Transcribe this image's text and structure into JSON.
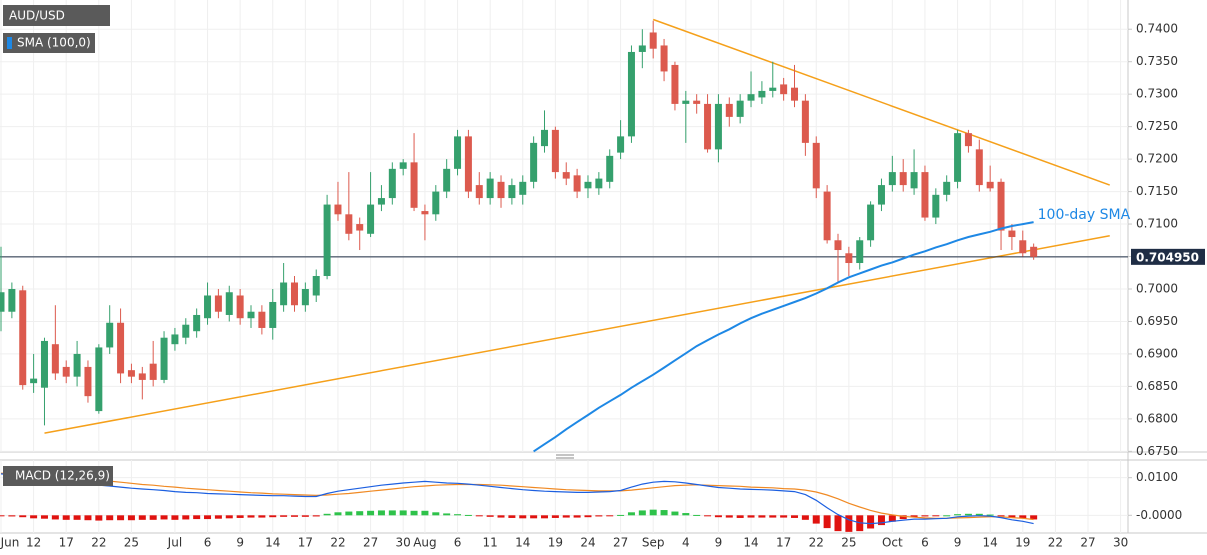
{
  "chart_data": [
    {
      "type": "candlestick",
      "title": "AUD/USD",
      "categories": [
        "Jun",
        null,
        null,
        "12",
        null,
        null,
        "17",
        null,
        null,
        "22",
        null,
        null,
        "25",
        null,
        null,
        null,
        "Jul",
        null,
        null,
        "6",
        null,
        null,
        "9",
        null,
        null,
        "14",
        null,
        null,
        "17",
        null,
        null,
        "22",
        null,
        null,
        "27",
        null,
        null,
        "30",
        null,
        "Aug",
        null,
        null,
        "6",
        null,
        null,
        "11",
        null,
        null,
        "14",
        null,
        null,
        "19",
        null,
        null,
        "24",
        null,
        null,
        "27",
        null,
        null,
        "Sep",
        null,
        null,
        "4",
        null,
        null,
        "9",
        null,
        null,
        "14",
        null,
        null,
        "17",
        null,
        null,
        "22",
        null,
        null,
        "25",
        null,
        null,
        null,
        "Oct",
        null,
        null,
        "6",
        null,
        null,
        "9",
        null,
        null,
        "14",
        null,
        null,
        "19",
        null,
        null,
        "22",
        null,
        null,
        "27",
        null,
        null,
        "30"
      ],
      "open": [
        0.6965,
        0.6965,
        0.6998,
        0.6855,
        0.6848,
        0.6915,
        0.688,
        0.6865,
        0.688,
        0.6812,
        0.691,
        0.6948,
        0.6875,
        0.687,
        0.6885,
        0.686,
        0.6915,
        0.6925,
        0.6935,
        0.6955,
        0.699,
        0.696,
        0.699,
        0.6955,
        0.6965,
        0.694,
        0.6975,
        0.701,
        0.6975,
        0.699,
        0.702,
        0.713,
        0.7115,
        0.71,
        0.7085,
        0.713,
        0.714,
        0.7185,
        0.7195,
        0.712,
        0.7115,
        0.715,
        0.7185,
        0.7235,
        0.716,
        0.714,
        0.7165,
        0.714,
        0.7145,
        0.7165,
        0.722,
        0.7245,
        0.718,
        0.7175,
        0.7155,
        0.7155,
        0.7165,
        0.721,
        0.7235,
        0.7365,
        0.7395,
        0.7375,
        0.7345,
        0.7285,
        0.729,
        0.7285,
        0.7215,
        0.7285,
        0.7265,
        0.729,
        0.7295,
        0.7305,
        0.7315,
        0.731,
        0.729,
        0.7225,
        0.715,
        0.7075,
        0.7055,
        0.704,
        0.7075,
        0.713,
        0.716,
        0.718,
        0.7155,
        0.718,
        0.711,
        0.7145,
        0.7165,
        0.724,
        0.7215,
        0.7165,
        0.7165,
        0.709,
        0.7075,
        0.7065,
        null,
        null,
        null,
        null,
        null,
        null,
        null,
        null
      ],
      "high": [
        0.7065,
        0.701,
        0.7005,
        0.69,
        0.6925,
        0.6975,
        0.689,
        0.692,
        0.689,
        0.6915,
        0.6975,
        0.697,
        0.6885,
        0.688,
        0.692,
        0.6935,
        0.694,
        0.6955,
        0.697,
        0.701,
        0.7,
        0.7005,
        0.7,
        0.6975,
        0.6975,
        0.7,
        0.704,
        0.702,
        0.701,
        0.703,
        0.7145,
        0.7165,
        0.718,
        0.711,
        0.718,
        0.716,
        0.7195,
        0.72,
        0.724,
        0.713,
        0.716,
        0.72,
        0.7245,
        0.7245,
        0.718,
        0.718,
        0.7175,
        0.717,
        0.7175,
        0.7235,
        0.7275,
        0.725,
        0.7195,
        0.7185,
        0.7175,
        0.718,
        0.7215,
        0.726,
        0.7375,
        0.74,
        0.7413,
        0.7385,
        0.735,
        0.7305,
        0.73,
        0.73,
        0.73,
        0.7295,
        0.73,
        0.7335,
        0.732,
        0.735,
        0.7325,
        0.7345,
        0.73,
        0.7235,
        0.716,
        0.7085,
        0.7065,
        0.708,
        0.7135,
        0.717,
        0.7205,
        0.72,
        0.7215,
        0.719,
        0.7155,
        0.7175,
        0.7245,
        0.7245,
        0.723,
        0.719,
        0.717,
        0.71,
        0.709,
        0.707,
        null,
        null,
        null,
        null,
        null,
        null,
        null,
        null
      ],
      "low": [
        0.6935,
        0.6955,
        0.6845,
        0.684,
        0.679,
        0.686,
        0.6855,
        0.685,
        0.6825,
        0.6808,
        0.69,
        0.6855,
        0.6855,
        0.683,
        0.685,
        0.6855,
        0.6905,
        0.6915,
        0.6925,
        0.6945,
        0.6955,
        0.695,
        0.6945,
        0.694,
        0.693,
        0.6922,
        0.6965,
        0.6965,
        0.6965,
        0.698,
        0.7015,
        0.7105,
        0.7075,
        0.706,
        0.708,
        0.712,
        0.713,
        0.7175,
        0.712,
        0.7075,
        0.7105,
        0.714,
        0.7175,
        0.714,
        0.713,
        0.713,
        0.7125,
        0.713,
        0.713,
        0.7155,
        0.721,
        0.717,
        0.716,
        0.714,
        0.714,
        0.7145,
        0.7155,
        0.72,
        0.7225,
        0.734,
        0.7355,
        0.732,
        0.7275,
        0.7225,
        0.727,
        0.721,
        0.7195,
        0.725,
        0.7255,
        0.728,
        0.7285,
        0.7295,
        0.729,
        0.728,
        0.7205,
        0.714,
        0.707,
        0.701,
        0.702,
        0.703,
        0.7065,
        0.712,
        0.715,
        0.715,
        0.7145,
        0.7105,
        0.71,
        0.7135,
        0.7155,
        0.721,
        0.715,
        0.715,
        0.706,
        0.706,
        0.705,
        0.7045,
        null,
        null,
        null,
        null,
        null,
        null,
        null,
        null
      ],
      "close": [
        0.6995,
        0.7,
        0.6852,
        0.6862,
        0.692,
        0.687,
        0.6865,
        0.69,
        0.6835,
        0.691,
        0.6948,
        0.687,
        0.6865,
        0.686,
        0.686,
        0.6925,
        0.693,
        0.6945,
        0.696,
        0.699,
        0.6965,
        0.6995,
        0.6955,
        0.6965,
        0.694,
        0.698,
        0.701,
        0.6975,
        0.7,
        0.702,
        0.713,
        0.7115,
        0.7085,
        0.709,
        0.713,
        0.714,
        0.7185,
        0.7195,
        0.7125,
        0.7115,
        0.715,
        0.7185,
        0.7235,
        0.715,
        0.714,
        0.717,
        0.714,
        0.716,
        0.7165,
        0.7225,
        0.7245,
        0.718,
        0.717,
        0.715,
        0.7165,
        0.717,
        0.7205,
        0.7235,
        0.7365,
        0.7375,
        0.737,
        0.7335,
        0.7285,
        0.729,
        0.7285,
        0.7215,
        0.7285,
        0.7265,
        0.729,
        0.73,
        0.7305,
        0.731,
        0.73,
        0.729,
        0.7225,
        0.7155,
        0.7075,
        0.706,
        0.704,
        0.7075,
        0.713,
        0.716,
        0.718,
        0.716,
        0.718,
        0.711,
        0.7145,
        0.7165,
        0.724,
        0.722,
        0.716,
        0.7155,
        0.709,
        0.708,
        0.7055,
        0.70495,
        null,
        null,
        null,
        null,
        null,
        null,
        null,
        null
      ],
      "up_color": "#35a06d",
      "down_color": "#dc5a4e",
      "indicator": {
        "name": "SMA (100,0)",
        "label": "100-day SMA",
        "color": "#1e88e5",
        "values": [
          null,
          null,
          null,
          null,
          null,
          null,
          null,
          null,
          null,
          null,
          null,
          null,
          null,
          null,
          null,
          null,
          null,
          null,
          null,
          null,
          null,
          null,
          null,
          null,
          null,
          null,
          null,
          null,
          null,
          null,
          null,
          null,
          null,
          null,
          null,
          null,
          null,
          null,
          null,
          null,
          null,
          null,
          null,
          null,
          null,
          null,
          null,
          null,
          null,
          0.675,
          0.6761,
          0.6772,
          0.6784,
          0.6795,
          0.6806,
          0.6817,
          0.6827,
          0.6837,
          0.6848,
          0.6858,
          0.6868,
          0.6879,
          0.689,
          0.6901,
          0.6912,
          0.6921,
          0.693,
          0.6938,
          0.6947,
          0.6955,
          0.6962,
          0.6968,
          0.6974,
          0.698,
          0.6986,
          0.6993,
          0.7001,
          0.701,
          0.7018,
          0.7024,
          0.703,
          0.7036,
          0.7041,
          0.7047,
          0.7053,
          0.7058,
          0.7064,
          0.7069,
          0.7075,
          0.708,
          0.7084,
          0.7088,
          0.7093,
          0.7097,
          0.71,
          0.7103,
          null,
          null,
          null,
          null,
          null,
          null,
          null,
          null
        ]
      },
      "trendlines": [
        {
          "color": "#f5a01a",
          "x": [
            4,
            102
          ],
          "y": [
            0.6778,
            0.7082
          ]
        },
        {
          "color": "#f5a01a",
          "x": [
            60,
            102
          ],
          "y": [
            0.7415,
            0.716
          ]
        }
      ],
      "last_price": {
        "value": 0.70495,
        "label": "0.704950"
      },
      "ylim": [
        0.6749,
        0.7445
      ],
      "yticks": [
        {
          "value": 0.675,
          "label": "0.6750"
        },
        {
          "value": 0.68,
          "label": "0.6800"
        },
        {
          "value": 0.685,
          "label": "0.6850"
        },
        {
          "value": 0.69,
          "label": "0.6900"
        },
        {
          "value": 0.695,
          "label": "0.6950"
        },
        {
          "value": 0.7,
          "label": "0.7000"
        },
        {
          "value": 0.705,
          "label": "0.7050"
        },
        {
          "value": 0.71,
          "label": "0.7100"
        },
        {
          "value": 0.715,
          "label": "0.7150"
        },
        {
          "value": 0.72,
          "label": "0.7200"
        },
        {
          "value": 0.725,
          "label": "0.7250"
        },
        {
          "value": 0.73,
          "label": "0.7300"
        },
        {
          "value": 0.735,
          "label": "0.7350"
        },
        {
          "value": 0.74,
          "label": "0.7400"
        }
      ],
      "grid": true
    },
    {
      "type": "macd",
      "title": "MACD (12,26,9)",
      "ylim": [
        -0.0047,
        0.0147
      ],
      "yticks": [
        {
          "value": 0.01,
          "label": "0.0100"
        },
        {
          "value": 0,
          "label": "-0.0000"
        }
      ],
      "macd": {
        "color": "#1c5fe0",
        "values": [
          0.011,
          0.0108,
          0.0105,
          0.01,
          0.0097,
          0.0093,
          0.009,
          0.0087,
          0.0083,
          0.008,
          0.0078,
          0.0075,
          0.0072,
          0.007,
          0.0068,
          0.0066,
          0.0063,
          0.0061,
          0.006,
          0.0058,
          0.0057,
          0.0056,
          0.0055,
          0.0054,
          0.0053,
          0.0052,
          0.0052,
          0.0051,
          0.005,
          0.005,
          0.0058,
          0.0064,
          0.0068,
          0.0072,
          0.0076,
          0.008,
          0.0083,
          0.0086,
          0.0088,
          0.009,
          0.0088,
          0.0086,
          0.0085,
          0.0083,
          0.008,
          0.0077,
          0.0074,
          0.0071,
          0.0068,
          0.0066,
          0.0064,
          0.0063,
          0.0062,
          0.0061,
          0.0061,
          0.0062,
          0.0063,
          0.0066,
          0.0075,
          0.0083,
          0.0088,
          0.009,
          0.0089,
          0.0086,
          0.0082,
          0.0078,
          0.0074,
          0.0072,
          0.007,
          0.0069,
          0.0068,
          0.0067,
          0.0065,
          0.0063,
          0.0055,
          0.004,
          0.002,
          0.0002,
          -0.0012,
          -0.002,
          -0.0022,
          -0.002,
          -0.0016,
          -0.0013,
          -0.001,
          -0.001,
          -0.0009,
          -0.0008,
          -0.0004,
          -0.0002,
          -0.0001,
          -0.0002,
          -0.0006,
          -0.0012,
          -0.0016,
          -0.0022,
          null,
          null,
          null,
          null,
          null,
          null,
          null,
          null
        ]
      },
      "signal": {
        "color": "#f08a24",
        "values": [
          0.0112,
          0.0111,
          0.011,
          0.0108,
          0.0106,
          0.0104,
          0.0102,
          0.0099,
          0.0096,
          0.0094,
          0.0091,
          0.0088,
          0.0085,
          0.0082,
          0.008,
          0.0077,
          0.0075,
          0.0072,
          0.007,
          0.0068,
          0.0066,
          0.0064,
          0.0062,
          0.006,
          0.0059,
          0.0057,
          0.0056,
          0.0055,
          0.0054,
          0.0053,
          0.0054,
          0.0056,
          0.0058,
          0.0061,
          0.0064,
          0.0067,
          0.007,
          0.0073,
          0.0076,
          0.0078,
          0.008,
          0.0081,
          0.0082,
          0.0082,
          0.0082,
          0.0081,
          0.008,
          0.0078,
          0.0076,
          0.0074,
          0.0072,
          0.007,
          0.0068,
          0.0067,
          0.0066,
          0.0065,
          0.0065,
          0.0065,
          0.0067,
          0.007,
          0.0073,
          0.0076,
          0.0079,
          0.008,
          0.0081,
          0.008,
          0.0079,
          0.0078,
          0.0077,
          0.0075,
          0.0074,
          0.0073,
          0.0071,
          0.007,
          0.0067,
          0.0062,
          0.0054,
          0.0044,
          0.0032,
          0.0022,
          0.0013,
          0.0006,
          0.0001,
          -0.0003,
          -0.0005,
          -0.0007,
          -0.0008,
          -0.0008,
          -0.0007,
          -0.0006,
          -0.0005,
          -0.0004,
          -0.0004,
          -0.0006,
          -0.0008,
          -0.0011,
          null,
          null,
          null,
          null,
          null,
          null,
          null,
          null
        ]
      },
      "histogram": {
        "up_color": "#2ec24a",
        "down_color": "#e0120f",
        "values": [
          -0.0002,
          -0.0003,
          -0.0005,
          -0.0008,
          -0.0009,
          -0.0011,
          -0.0012,
          -0.0012,
          -0.0013,
          -0.0014,
          -0.0013,
          -0.0013,
          -0.0013,
          -0.0012,
          -0.0012,
          -0.0011,
          -0.0012,
          -0.0011,
          -0.001,
          -0.001,
          -0.0009,
          -0.0008,
          -0.0007,
          -0.0006,
          -0.0006,
          -0.0005,
          -0.0004,
          -0.0004,
          -0.0004,
          -0.0003,
          0.0004,
          0.0008,
          0.001,
          0.0011,
          0.0012,
          0.0013,
          0.0013,
          0.0013,
          0.0012,
          0.0012,
          0.0008,
          0.0005,
          0.0003,
          0.0001,
          -0.0002,
          -0.0004,
          -0.0006,
          -0.0007,
          -0.0008,
          -0.0008,
          -0.0008,
          -0.0007,
          -0.0006,
          -0.0006,
          -0.0005,
          -0.0003,
          -0.0002,
          0.0001,
          0.0008,
          0.0013,
          0.0015,
          0.0014,
          0.001,
          0.0006,
          0.0001,
          -0.0002,
          -0.0005,
          -0.0006,
          -0.0007,
          -0.0006,
          -0.0006,
          -0.0006,
          -0.0006,
          -0.0007,
          -0.0012,
          -0.0022,
          -0.0034,
          -0.0042,
          -0.0044,
          -0.0042,
          -0.0035,
          -0.0026,
          -0.0017,
          -0.001,
          -0.0005,
          -0.0003,
          -0.0001,
          0,
          0.0003,
          0.0004,
          0.0004,
          0.0002,
          -0.0002,
          -0.0006,
          -0.0008,
          -0.0011,
          null,
          null,
          null,
          null,
          null,
          null,
          null,
          null
        ]
      },
      "grid": true
    }
  ]
}
